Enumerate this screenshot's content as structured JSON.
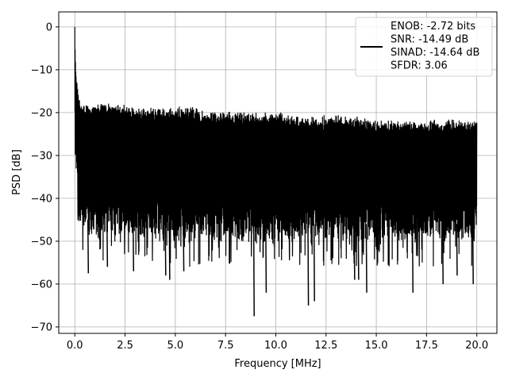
{
  "chart_data": {
    "type": "line",
    "xlabel": "Frequency [MHz]",
    "ylabel": "PSD [dB]",
    "xlim": [
      -0.8,
      21.0
    ],
    "ylim": [
      -71.5,
      3.5
    ],
    "xticks": [
      0.0,
      2.5,
      5.0,
      7.5,
      10.0,
      12.5,
      15.0,
      17.5,
      20.0
    ],
    "xtick_labels": [
      "0.0",
      "2.5",
      "5.0",
      "7.5",
      "10.0",
      "12.5",
      "15.0",
      "17.5",
      "20.0"
    ],
    "yticks": [
      0,
      -10,
      -20,
      -30,
      -40,
      -50,
      -60,
      -70
    ],
    "ytick_labels": [
      "0",
      "−10",
      "−20",
      "−30",
      "−40",
      "−50",
      "−60",
      "−70"
    ],
    "grid": true,
    "legend_position": "top-right",
    "series": [
      {
        "color": "#000000",
        "legend_lines": [
          "ENOB: -2.72 bits",
          "SNR: -14.49 dB",
          "SINAD: -14.64 dB",
          "SFDR: 3.06"
        ],
        "x": [
          0.0,
          0.02,
          0.05,
          0.1,
          0.15,
          0.2,
          0.3,
          0.4,
          0.5,
          0.6,
          0.8,
          1.0,
          1.5,
          2.0,
          2.5,
          3.0,
          4.0,
          5.0,
          6.0,
          7.0,
          8.0,
          9.0,
          10.0,
          11.0,
          12.0,
          13.0,
          14.0,
          15.0,
          16.0,
          17.0,
          18.0,
          19.0,
          20.0
        ],
        "upper_envelope": [
          0,
          -5,
          -11,
          -13,
          -15,
          -17,
          -18,
          -19,
          -19,
          -19,
          -19,
          -19,
          -19,
          -19,
          -19,
          -20,
          -20,
          -20,
          -20,
          -21,
          -21,
          -21,
          -21,
          -22,
          -22,
          -22,
          -22,
          -23,
          -23,
          -23,
          -23,
          -23,
          -23
        ],
        "lower_envelope": [
          -22,
          -28,
          -33,
          -36,
          -40,
          -43,
          -45,
          -46,
          -47,
          -47,
          -47,
          -47,
          -47,
          -47,
          -47,
          -47,
          -47,
          -48,
          -48,
          -48,
          -48,
          -48,
          -48,
          -48,
          -48,
          -48,
          -48,
          -48,
          -48,
          -48,
          -48,
          -48,
          -48
        ],
        "deep_dips": [
          [
            0.65,
            -57.5
          ],
          [
            1.6,
            -56
          ],
          [
            2.9,
            -57
          ],
          [
            4.5,
            -58
          ],
          [
            4.7,
            -59
          ],
          [
            5.4,
            -57
          ],
          [
            8.9,
            -67.5
          ],
          [
            9.5,
            -62
          ],
          [
            11.6,
            -65
          ],
          [
            11.9,
            -64
          ],
          [
            13.9,
            -59
          ],
          [
            14.1,
            -59
          ],
          [
            14.5,
            -62
          ],
          [
            16.8,
            -62
          ],
          [
            18.3,
            -60
          ],
          [
            19.0,
            -58
          ],
          [
            19.8,
            -60
          ]
        ]
      }
    ]
  }
}
